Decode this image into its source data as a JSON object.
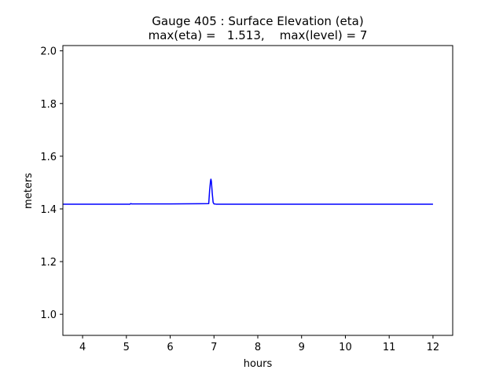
{
  "chart_data": {
    "type": "line",
    "title_line1": "Gauge 405 : Surface Elevation (eta)",
    "title_line2": "max(eta) =   1.513,    max(level) = 7",
    "xlabel": "hours",
    "ylabel": "meters",
    "xlim": [
      3.55,
      12.45
    ],
    "ylim": [
      0.92,
      2.02
    ],
    "x_ticks": [
      4,
      5,
      6,
      7,
      8,
      9,
      10,
      11,
      12
    ],
    "y_ticks": [
      1.0,
      1.2,
      1.4,
      1.6,
      1.8,
      2.0
    ],
    "x_tick_labels": [
      "4",
      "5",
      "6",
      "7",
      "8",
      "9",
      "10",
      "11",
      "12"
    ],
    "y_tick_labels": [
      "1.0",
      "1.2",
      "1.4",
      "1.6",
      "1.8",
      "2.0"
    ],
    "grid": false,
    "series": [
      {
        "color": "#0000ff",
        "x": [
          3.55,
          5.08,
          5.1,
          5.12,
          5.2,
          6.0,
          6.88,
          6.9,
          6.92,
          6.93,
          6.94,
          6.96,
          6.98,
          7.0,
          7.05,
          8.0,
          9.0,
          10.0,
          11.0,
          12.0
        ],
        "y": [
          1.418,
          1.418,
          1.42,
          1.419,
          1.419,
          1.419,
          1.42,
          1.47,
          1.505,
          1.513,
          1.505,
          1.46,
          1.425,
          1.419,
          1.418,
          1.418,
          1.418,
          1.418,
          1.418,
          1.418
        ]
      }
    ]
  }
}
